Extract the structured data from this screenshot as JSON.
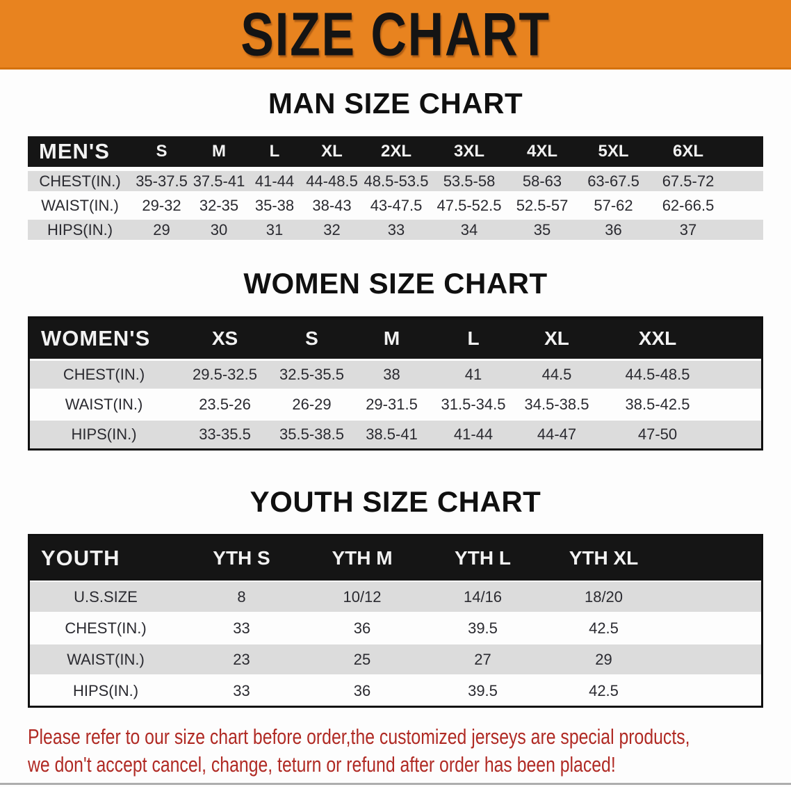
{
  "banner": {
    "title": "SIZE CHART"
  },
  "colors": {
    "banner_orange": "#e8831f",
    "header_black": "#151515",
    "stripe_gray": "#dcdcdc",
    "note_red": "#b02a24"
  },
  "men": {
    "heading": "MAN SIZE CHART",
    "header": [
      "MEN'S",
      "S",
      "M",
      "L",
      "XL",
      "2XL",
      "3XL",
      "4XL",
      "5XL",
      "6XL"
    ],
    "rows": [
      {
        "label": "CHEST(IN.)",
        "values": [
          "35-37.5",
          "37.5-41",
          "41-44",
          "44-48.5",
          "48.5-53.5",
          "53.5-58",
          "58-63",
          "63-67.5",
          "67.5-72"
        ]
      },
      {
        "label": "WAIST(IN.)",
        "values": [
          "29-32",
          "32-35",
          "35-38",
          "38-43",
          "43-47.5",
          "47.5-52.5",
          "52.5-57",
          "57-62",
          "62-66.5"
        ]
      },
      {
        "label": "HIPS(IN.)",
        "values": [
          "29",
          "30",
          "31",
          "32",
          "33",
          "34",
          "35",
          "36",
          "37"
        ]
      }
    ]
  },
  "women": {
    "heading": "WOMEN SIZE CHART",
    "header": [
      "WOMEN'S",
      "XS",
      "S",
      "M",
      "L",
      "XL",
      "XXL"
    ],
    "rows": [
      {
        "label": "CHEST(IN.)",
        "values": [
          "29.5-32.5",
          "32.5-35.5",
          "38",
          "41",
          "44.5",
          "44.5-48.5"
        ]
      },
      {
        "label": "WAIST(IN.)",
        "values": [
          "23.5-26",
          "26-29",
          "29-31.5",
          "31.5-34.5",
          "34.5-38.5",
          "38.5-42.5"
        ]
      },
      {
        "label": "HIPS(IN.)",
        "values": [
          "33-35.5",
          "35.5-38.5",
          "38.5-41",
          "41-44",
          "44-47",
          "47-50"
        ]
      }
    ]
  },
  "youth": {
    "heading": "YOUTH SIZE CHART",
    "header": [
      "YOUTH",
      "YTH S",
      "YTH M",
      "YTH L",
      "YTH XL"
    ],
    "rows": [
      {
        "label": "U.S.SIZE",
        "values": [
          "8",
          "10/12",
          "14/16",
          "18/20"
        ]
      },
      {
        "label": "CHEST(IN.)",
        "values": [
          "33",
          "36",
          "39.5",
          "42.5"
        ]
      },
      {
        "label": "WAIST(IN.)",
        "values": [
          "23",
          "25",
          "27",
          "29"
        ]
      },
      {
        "label": "HIPS(IN.)",
        "values": [
          "33",
          "36",
          "39.5",
          "42.5"
        ]
      }
    ]
  },
  "note": {
    "line1": "Please refer to our size chart before order,the customized jerseys are special products,",
    "line2": "we don't accept cancel, change, teturn or refund after order has been placed!"
  }
}
